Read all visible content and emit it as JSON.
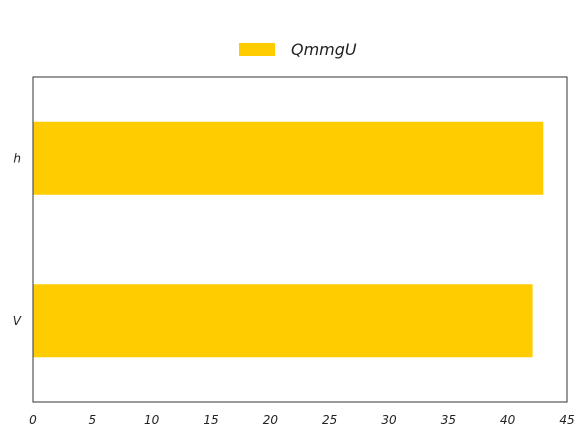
{
  "chart_data": {
    "type": "bar",
    "orientation": "horizontal",
    "categories": [
      "h",
      "V"
    ],
    "series": [
      {
        "name": "QmmgU",
        "values": [
          43.0,
          42.1
        ],
        "color": "#ffcc00"
      }
    ],
    "xlim": [
      0,
      45
    ],
    "xticks": [
      0,
      5,
      10,
      15,
      20,
      25,
      30,
      35,
      40,
      45
    ],
    "title": "",
    "xlabel": "",
    "ylabel": "",
    "grid": false,
    "legend": {
      "position": "top-center",
      "entries": [
        "QmmgU"
      ]
    },
    "colors": {
      "bar": "#ffcc00",
      "axis": "#333333",
      "text": "#222222"
    }
  }
}
